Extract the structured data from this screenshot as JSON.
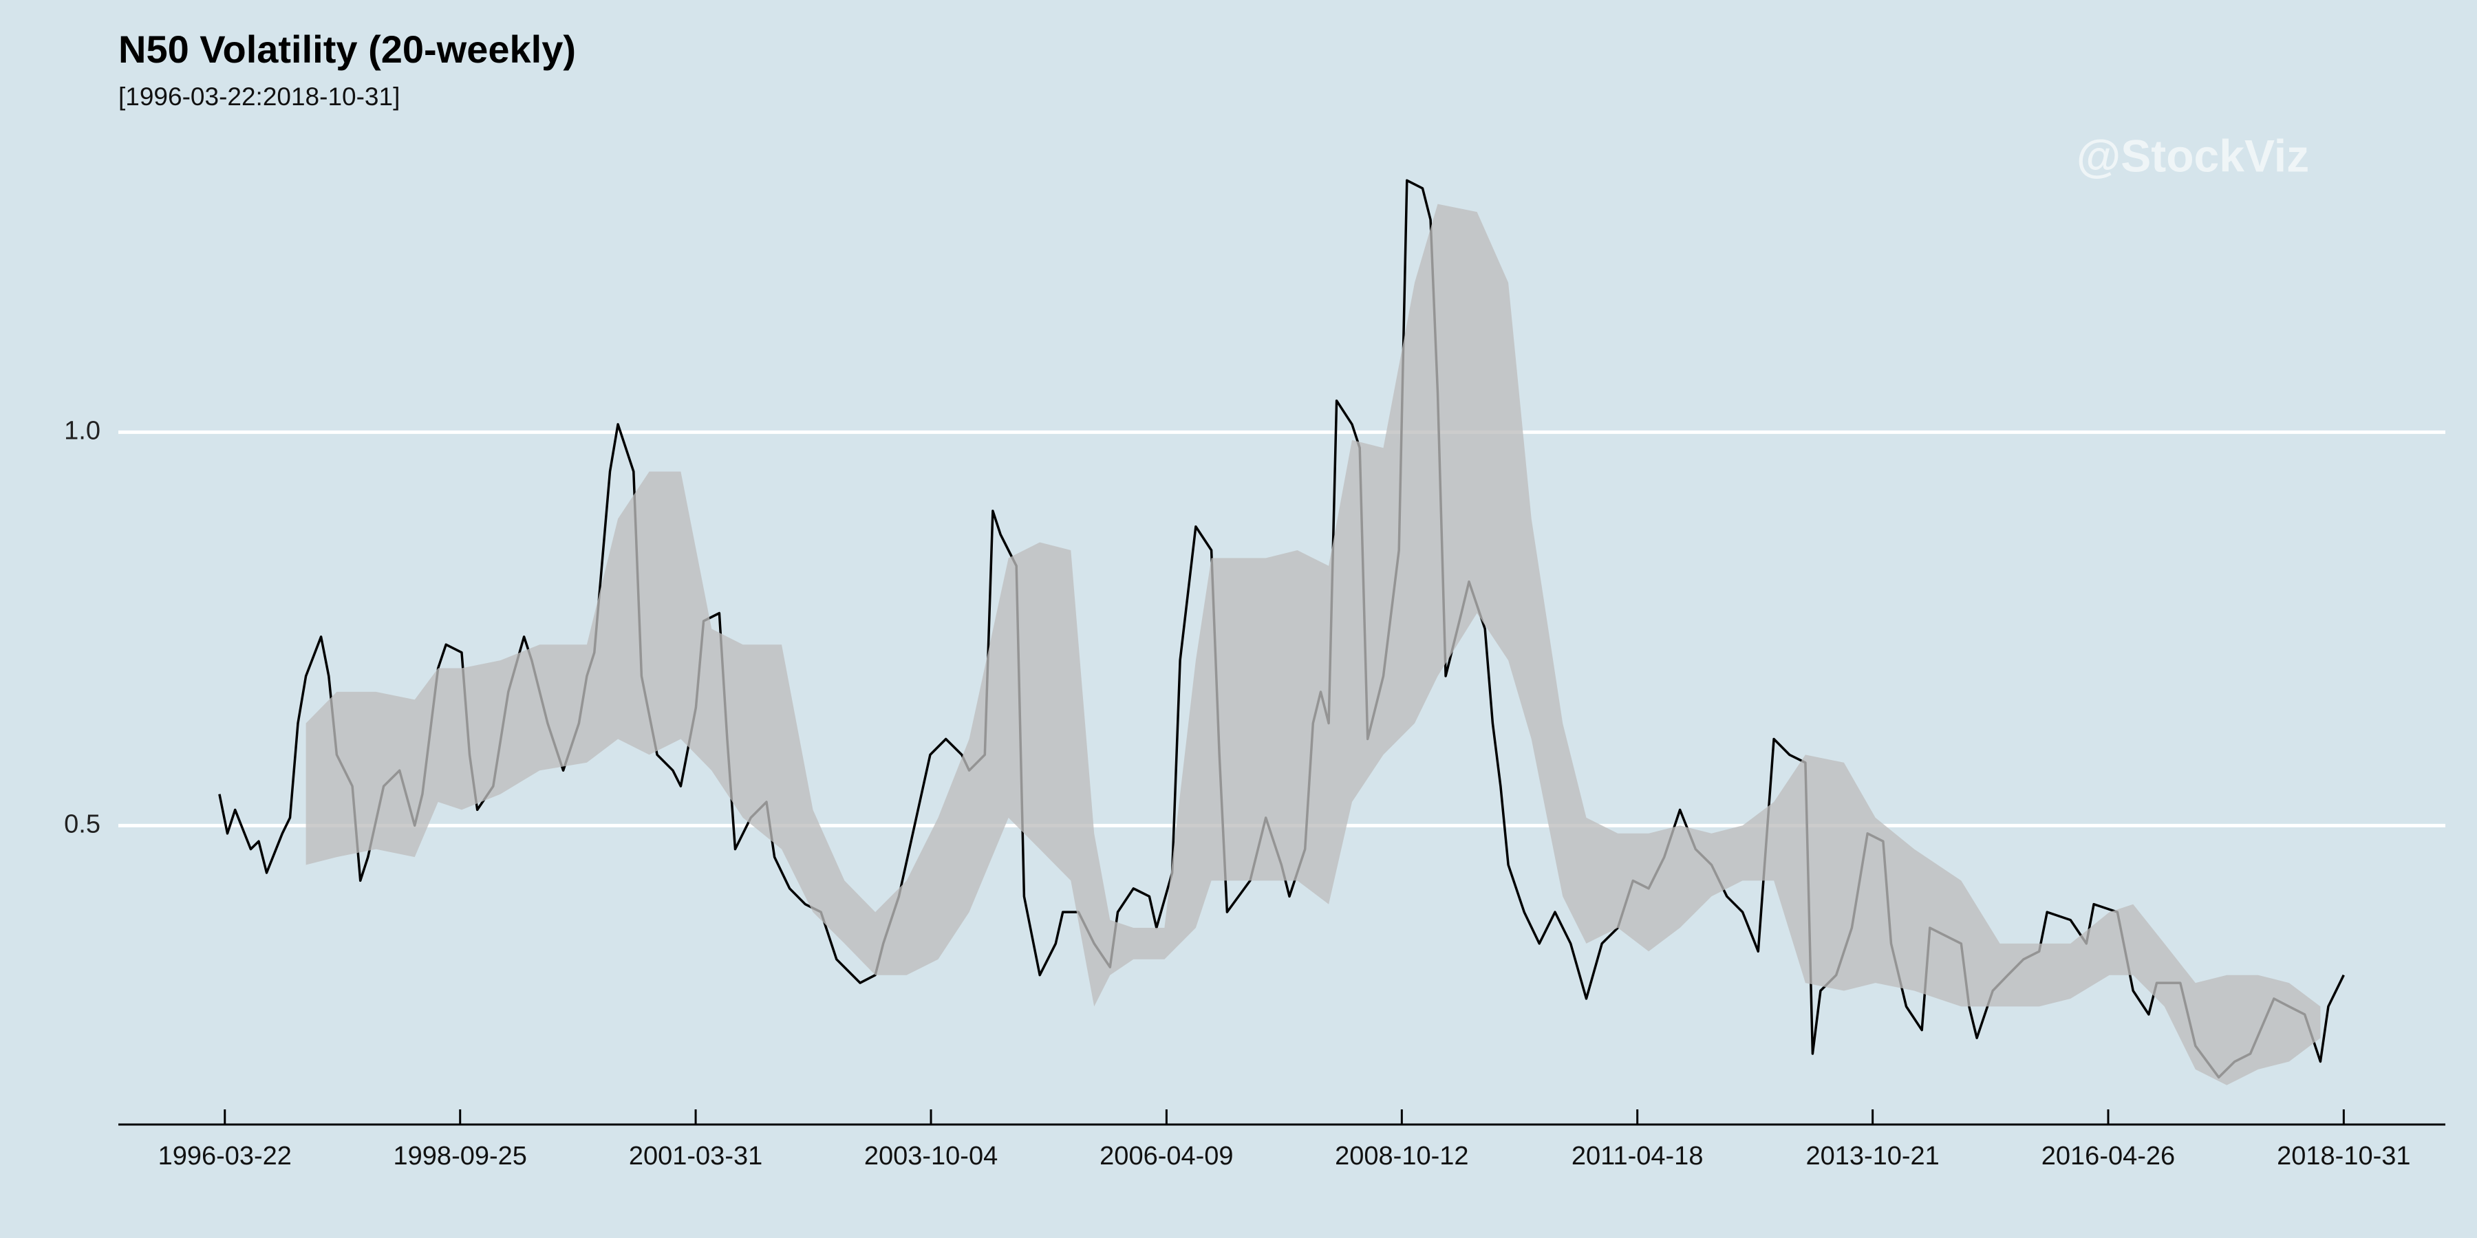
{
  "chart_data": {
    "type": "line",
    "title": "N50 Volatility (20-weekly)",
    "subtitle": "[1996-03-22:2018-10-31]",
    "watermark": "@StockViz",
    "background": "#d5e4eb",
    "grid": true,
    "xlim": [
      "1995-02",
      "2019-12"
    ],
    "xticks": [
      "1996-03-22",
      "1998-09-25",
      "2001-03-31",
      "2003-10-04",
      "2006-04-09",
      "2008-10-12",
      "2011-04-18",
      "2013-10-21",
      "2016-04-26",
      "2018-10-31"
    ],
    "ylim": [
      0.12,
      1.35
    ],
    "yticks": [
      0.5,
      {
        "value": 1,
        "label": "1.0"
      }
    ],
    "x": [
      "1996-03",
      "1996-04",
      "1996-05",
      "1996-07",
      "1996-08",
      "1996-09",
      "1996-11",
      "1996-12",
      "1997-01",
      "1997-02",
      "1997-04",
      "1997-05",
      "1997-06",
      "1997-08",
      "1997-09",
      "1997-10",
      "1997-12",
      "1998-02",
      "1998-04",
      "1998-05",
      "1998-07",
      "1998-08",
      "1998-10",
      "1998-11",
      "1998-12",
      "1999-02",
      "1999-04",
      "1999-06",
      "1999-07",
      "1999-09",
      "1999-11",
      "2000-01",
      "2000-02",
      "2000-03",
      "2000-05",
      "2000-06",
      "2000-08",
      "2000-09",
      "2000-11",
      "2001-01",
      "2001-02",
      "2001-04",
      "2001-05",
      "2001-07",
      "2001-08",
      "2001-09",
      "2001-11",
      "2002-01",
      "2002-02",
      "2002-04",
      "2002-06",
      "2002-08",
      "2002-10",
      "2003-01",
      "2003-03",
      "2003-04",
      "2003-06",
      "2003-08",
      "2003-10",
      "2003-12",
      "2004-02",
      "2004-03",
      "2004-05",
      "2004-06",
      "2004-07",
      "2004-09",
      "2004-10",
      "2004-12",
      "2005-02",
      "2005-03",
      "2005-05",
      "2005-07",
      "2005-09",
      "2005-10",
      "2005-12",
      "2006-02",
      "2006-03",
      "2006-05",
      "2006-06",
      "2006-08",
      "2006-10",
      "2006-11",
      "2006-12",
      "2007-03",
      "2007-05",
      "2007-07",
      "2007-08",
      "2007-10",
      "2007-11",
      "2007-12",
      "2008-01",
      "2008-02",
      "2008-04",
      "2008-05",
      "2008-06",
      "2008-08",
      "2008-10",
      "2008-11",
      "2009-01",
      "2009-02",
      "2009-03",
      "2009-04",
      "2009-06",
      "2009-07",
      "2009-09",
      "2009-10",
      "2009-11",
      "2009-12",
      "2010-02",
      "2010-04",
      "2010-06",
      "2010-08",
      "2010-10",
      "2010-12",
      "2011-02",
      "2011-04",
      "2011-06",
      "2011-08",
      "2011-10",
      "2011-12",
      "2012-02",
      "2012-04",
      "2012-06",
      "2012-08",
      "2012-10",
      "2012-12",
      "2013-02",
      "2013-03",
      "2013-04",
      "2013-06",
      "2013-08",
      "2013-10",
      "2013-12",
      "2014-01",
      "2014-03",
      "2014-05",
      "2014-06",
      "2014-08",
      "2014-10",
      "2014-11",
      "2014-12",
      "2015-02",
      "2015-04",
      "2015-06",
      "2015-08",
      "2015-09",
      "2015-12",
      "2016-02",
      "2016-03",
      "2016-06",
      "2016-08",
      "2016-10",
      "2016-11",
      "2017-02",
      "2017-04",
      "2017-07",
      "2017-09",
      "2017-11",
      "2018-02",
      "2018-04",
      "2018-06",
      "2018-08",
      "2018-09",
      "2018-10-31"
    ],
    "series": [
      {
        "color": "#000000",
        "values": [
          0.54,
          0.49,
          0.52,
          0.47,
          0.48,
          0.44,
          0.49,
          0.51,
          0.63,
          0.69,
          0.74,
          0.69,
          0.59,
          0.55,
          0.43,
          0.46,
          0.55,
          0.57,
          0.5,
          0.54,
          0.7,
          0.73,
          0.72,
          0.59,
          0.52,
          0.55,
          0.67,
          0.74,
          0.71,
          0.63,
          0.57,
          0.63,
          0.69,
          0.72,
          0.95,
          1.01,
          0.95,
          0.69,
          0.59,
          0.57,
          0.55,
          0.65,
          0.76,
          0.77,
          0.61,
          0.47,
          0.51,
          0.53,
          0.46,
          0.42,
          0.4,
          0.39,
          0.33,
          0.3,
          0.31,
          0.35,
          0.41,
          0.5,
          0.59,
          0.61,
          0.59,
          0.57,
          0.59,
          0.9,
          0.87,
          0.83,
          0.41,
          0.31,
          0.35,
          0.39,
          0.39,
          0.35,
          0.32,
          0.39,
          0.42,
          0.41,
          0.37,
          0.44,
          0.71,
          0.88,
          0.85,
          0.59,
          0.39,
          0.43,
          0.51,
          0.45,
          0.41,
          0.47,
          0.63,
          0.67,
          0.63,
          1.04,
          1.01,
          0.98,
          0.61,
          0.69,
          0.85,
          1.32,
          1.31,
          1.27,
          1.05,
          0.69,
          0.77,
          0.81,
          0.75,
          0.63,
          0.55,
          0.45,
          0.39,
          0.35,
          0.39,
          0.35,
          0.28,
          0.35,
          0.37,
          0.43,
          0.42,
          0.46,
          0.52,
          0.47,
          0.45,
          0.41,
          0.39,
          0.34,
          0.61,
          0.59,
          0.58,
          0.21,
          0.29,
          0.31,
          0.37,
          0.49,
          0.48,
          0.35,
          0.27,
          0.24,
          0.37,
          0.36,
          0.35,
          0.27,
          0.23,
          0.29,
          0.31,
          0.33,
          0.34,
          0.39,
          0.38,
          0.35,
          0.4,
          0.39,
          0.29,
          0.26,
          0.3,
          0.3,
          0.22,
          0.18,
          0.2,
          0.21,
          0.28,
          0.27,
          0.26,
          0.2,
          0.27,
          0.31
        ]
      }
    ],
    "band": {
      "color": "#bebebe",
      "x": [
        "1997-02",
        "1997-06",
        "1997-11",
        "1998-04",
        "1998-07",
        "1998-10",
        "1999-03",
        "1999-08",
        "2000-02",
        "2000-06",
        "2000-10",
        "2001-02",
        "2001-06",
        "2001-10",
        "2002-03",
        "2002-07",
        "2002-11",
        "2003-03",
        "2003-07",
        "2003-11",
        "2004-03",
        "2004-08",
        "2004-12",
        "2005-04",
        "2005-07",
        "2005-09",
        "2005-12",
        "2006-04",
        "2006-08",
        "2006-10",
        "2007-05",
        "2007-09",
        "2008-01",
        "2008-04",
        "2008-08",
        "2008-12",
        "2009-03",
        "2009-08",
        "2009-12",
        "2010-03",
        "2010-07",
        "2010-10",
        "2011-02",
        "2011-06",
        "2011-10",
        "2012-02",
        "2012-06",
        "2012-10",
        "2013-02",
        "2013-07",
        "2013-11",
        "2014-04",
        "2014-10",
        "2015-03",
        "2015-08",
        "2015-12",
        "2016-05",
        "2016-08",
        "2016-12",
        "2017-04",
        "2017-08",
        "2017-12",
        "2018-04",
        "2018-08"
      ],
      "upper": [
        0.63,
        0.67,
        0.67,
        0.66,
        0.7,
        0.7,
        0.71,
        0.73,
        0.73,
        0.89,
        0.95,
        0.95,
        0.75,
        0.73,
        0.73,
        0.52,
        0.43,
        0.39,
        0.43,
        0.51,
        0.61,
        0.84,
        0.86,
        0.85,
        0.49,
        0.38,
        0.37,
        0.37,
        0.71,
        0.84,
        0.84,
        0.85,
        0.83,
        0.99,
        0.98,
        1.19,
        1.29,
        1.28,
        1.19,
        0.89,
        0.63,
        0.51,
        0.49,
        0.49,
        0.5,
        0.49,
        0.5,
        0.53,
        0.59,
        0.58,
        0.51,
        0.47,
        0.43,
        0.35,
        0.35,
        0.35,
        0.39,
        0.4,
        0.35,
        0.3,
        0.31,
        0.31,
        0.3,
        0.27
      ],
      "lower": [
        0.45,
        0.46,
        0.47,
        0.46,
        0.53,
        0.52,
        0.54,
        0.57,
        0.58,
        0.61,
        0.59,
        0.61,
        0.57,
        0.51,
        0.47,
        0.39,
        0.35,
        0.31,
        0.31,
        0.33,
        0.39,
        0.51,
        0.47,
        0.43,
        0.27,
        0.31,
        0.33,
        0.33,
        0.37,
        0.43,
        0.43,
        0.43,
        0.4,
        0.53,
        0.59,
        0.63,
        0.69,
        0.77,
        0.71,
        0.61,
        0.41,
        0.35,
        0.37,
        0.34,
        0.37,
        0.41,
        0.43,
        0.43,
        0.3,
        0.29,
        0.3,
        0.29,
        0.27,
        0.27,
        0.27,
        0.28,
        0.31,
        0.31,
        0.27,
        0.19,
        0.17,
        0.19,
        0.2,
        0.23
      ]
    }
  }
}
